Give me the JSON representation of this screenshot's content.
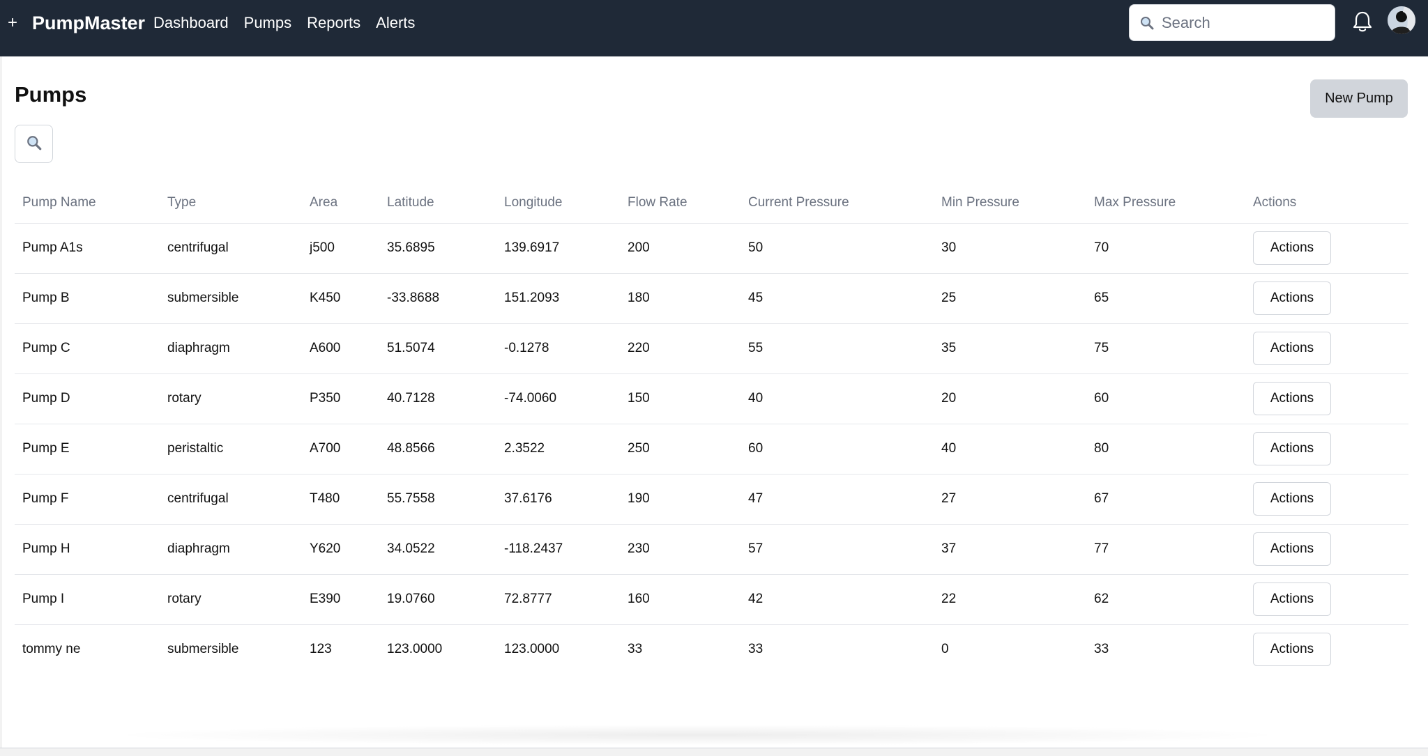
{
  "header": {
    "brand": "PumpMaster",
    "plus_label": "+",
    "nav": [
      {
        "label": "Dashboard"
      },
      {
        "label": "Pumps"
      },
      {
        "label": "Reports"
      },
      {
        "label": "Alerts"
      }
    ],
    "search": {
      "placeholder": "Search",
      "value": ""
    },
    "icons": {
      "search": "search-icon",
      "bell": "bell-icon",
      "avatar": "user-avatar"
    }
  },
  "page": {
    "title": "Pumps",
    "new_button": "New Pump",
    "filter_icon": "search-icon"
  },
  "table": {
    "columns": [
      "Pump Name",
      "Type",
      "Area",
      "Latitude",
      "Longitude",
      "Flow Rate",
      "Current Pressure",
      "Min Pressure",
      "Max Pressure",
      "Actions"
    ],
    "rows": [
      {
        "name": "Pump A1s",
        "type": "centrifugal",
        "area": "j500",
        "lat": "35.6895",
        "lng": "139.6917",
        "flow": "200",
        "current": "50",
        "min": "30",
        "max": "70",
        "action": "Actions"
      },
      {
        "name": "Pump B",
        "type": "submersible",
        "area": "K450",
        "lat": "-33.8688",
        "lng": "151.2093",
        "flow": "180",
        "current": "45",
        "min": "25",
        "max": "65",
        "action": "Actions"
      },
      {
        "name": "Pump C",
        "type": "diaphragm",
        "area": "A600",
        "lat": "51.5074",
        "lng": "-0.1278",
        "flow": "220",
        "current": "55",
        "min": "35",
        "max": "75",
        "action": "Actions"
      },
      {
        "name": "Pump D",
        "type": "rotary",
        "area": "P350",
        "lat": "40.7128",
        "lng": "-74.0060",
        "flow": "150",
        "current": "40",
        "min": "20",
        "max": "60",
        "action": "Actions"
      },
      {
        "name": "Pump E",
        "type": "peristaltic",
        "area": "A700",
        "lat": "48.8566",
        "lng": "2.3522",
        "flow": "250",
        "current": "60",
        "min": "40",
        "max": "80",
        "action": "Actions"
      },
      {
        "name": "Pump F",
        "type": "centrifugal",
        "area": "T480",
        "lat": "55.7558",
        "lng": "37.6176",
        "flow": "190",
        "current": "47",
        "min": "27",
        "max": "67",
        "action": "Actions"
      },
      {
        "name": "Pump H",
        "type": "diaphragm",
        "area": "Y620",
        "lat": "34.0522",
        "lng": "-118.2437",
        "flow": "230",
        "current": "57",
        "min": "37",
        "max": "77",
        "action": "Actions"
      },
      {
        "name": "Pump I",
        "type": "rotary",
        "area": "E390",
        "lat": "19.0760",
        "lng": "72.8777",
        "flow": "160",
        "current": "42",
        "min": "22",
        "max": "62",
        "action": "Actions"
      },
      {
        "name": "tommy ne",
        "type": "submersible",
        "area": "123",
        "lat": "123.0000",
        "lng": "123.0000",
        "flow": "33",
        "current": "33",
        "min": "0",
        "max": "33",
        "action": "Actions"
      }
    ]
  },
  "colors": {
    "header_bg": "#1f2937",
    "secondary_button": "#d1d5db",
    "muted_text": "#6b7280"
  }
}
